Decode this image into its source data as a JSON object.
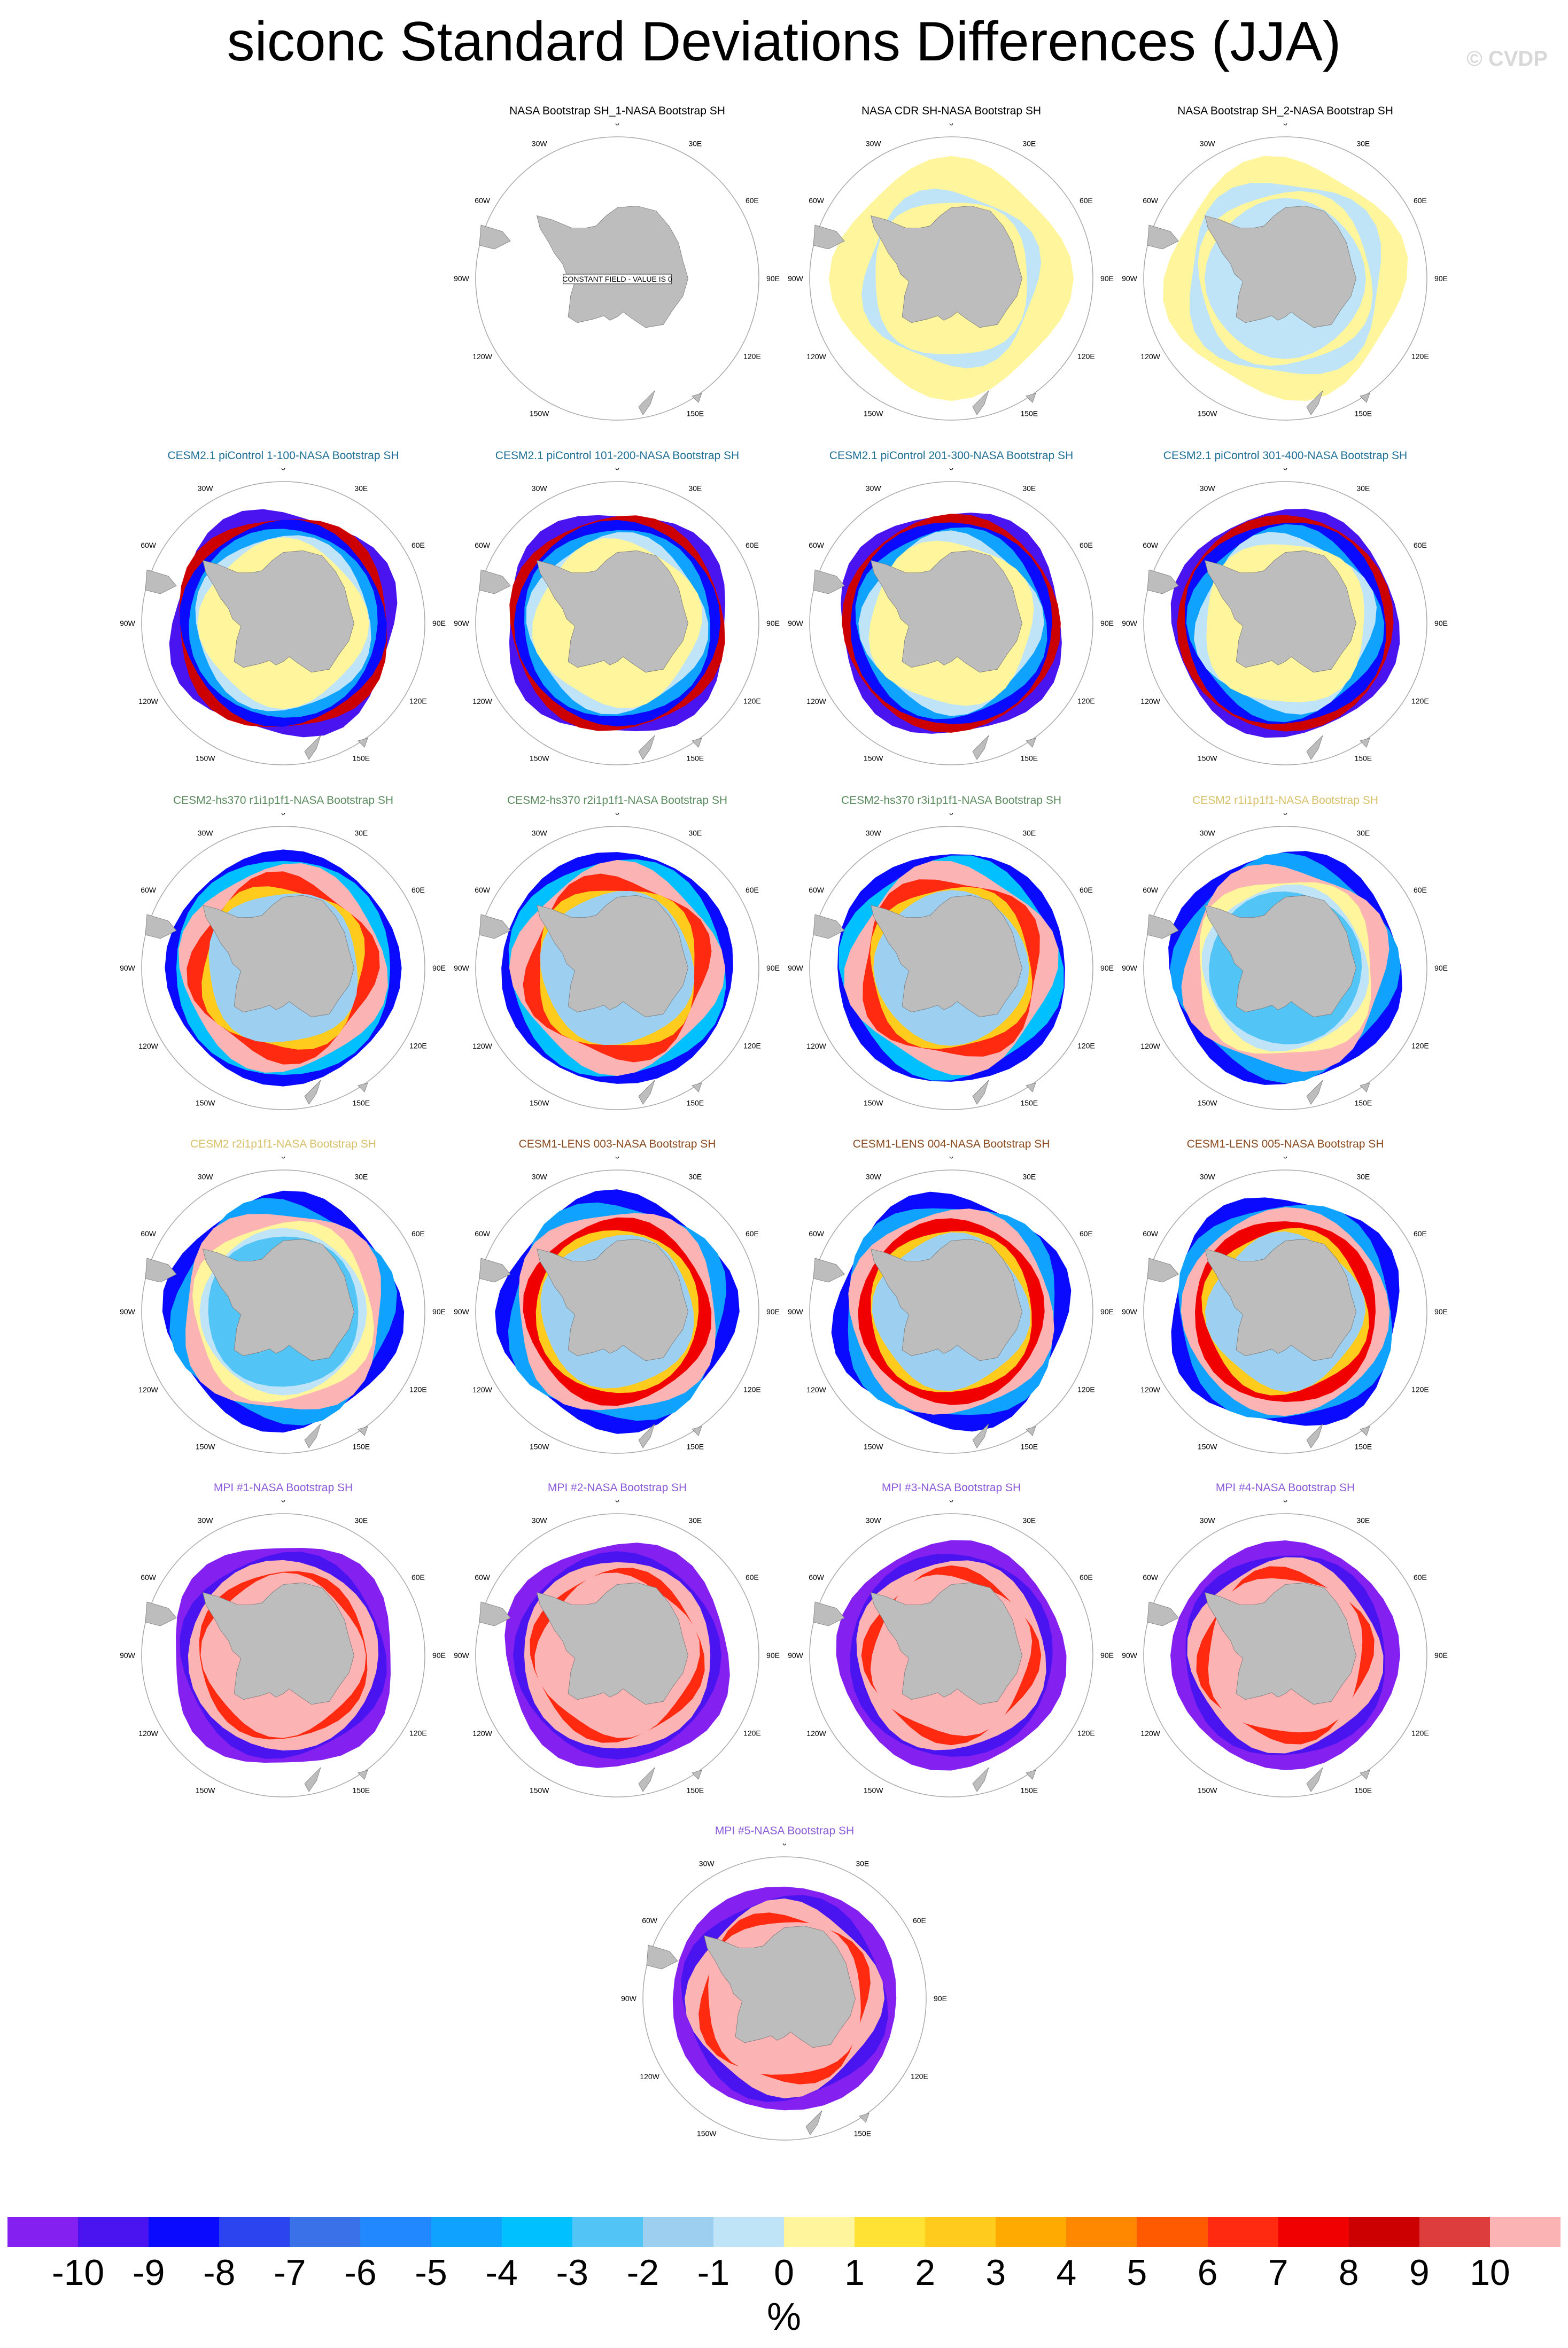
{
  "title": "siconc Standard Deviations Differences (JJA)",
  "credit": "© CVDP",
  "colors": {
    "land": "#bdbdbd",
    "ocean": "#ffffff",
    "circle": "#a8a8a8"
  },
  "longitude_labels": [
    "0",
    "30E",
    "60E",
    "90E",
    "120E",
    "150E",
    "180",
    "150W",
    "120W",
    "90W",
    "60W",
    "30W"
  ],
  "chart_data": {
    "type": "heatmap",
    "projection": "south-polar-stereographic",
    "units": "%",
    "colorbar": {
      "ticks": [
        "-10",
        "-9",
        "-8",
        "-7",
        "-6",
        "-5",
        "-4",
        "-3",
        "-2",
        "-1",
        "0",
        "1",
        "2",
        "3",
        "4",
        "5",
        "6",
        "7",
        "8",
        "9",
        "10"
      ],
      "colors": [
        "#8420f0",
        "#4a14f0",
        "#0a0aff",
        "#2c44f0",
        "#3a70e8",
        "#2288ff",
        "#10a2ff",
        "#00c0ff",
        "#52c4f5",
        "#9ccff0",
        "#bfe4f7",
        "#fff59c",
        "#ffe233",
        "#ffcc1e",
        "#ffaa00",
        "#ff8800",
        "#ff5a00",
        "#ff2a10",
        "#f00000",
        "#cc0000",
        "#dd3d3d",
        "#fbb3b3"
      ]
    },
    "panels": [
      {
        "title": "NASA Bootstrap SH_1-NASA Bootstrap SH",
        "title_color": "#000000",
        "pattern": "constant",
        "note": "CONSTANT FIELD - VALUE IS 0"
      },
      {
        "title": "NASA CDR SH-NASA Bootstrap SH",
        "title_color": "#000000",
        "pattern": "obs_cdr"
      },
      {
        "title": "NASA Bootstrap SH_2-NASA Bootstrap SH",
        "title_color": "#000000",
        "pattern": "obs_bs2"
      },
      {
        "title": "CESM2.1 piControl 1-100-NASA Bootstrap SH",
        "title_color": "#1e6e96",
        "pattern": "picontrol"
      },
      {
        "title": "CESM2.1 piControl 101-200-NASA Bootstrap SH",
        "title_color": "#1e6e96",
        "pattern": "picontrol"
      },
      {
        "title": "CESM2.1 piControl 201-300-NASA Bootstrap SH",
        "title_color": "#1e6e96",
        "pattern": "picontrol"
      },
      {
        "title": "CESM2.1 piControl 301-400-NASA Bootstrap SH",
        "title_color": "#1e6e96",
        "pattern": "picontrol"
      },
      {
        "title": "CESM2-hs370 r1i1p1f1-NASA Bootstrap SH",
        "title_color": "#5b8a5e",
        "pattern": "hs370"
      },
      {
        "title": "CESM2-hs370 r2i1p1f1-NASA Bootstrap SH",
        "title_color": "#5b8a5e",
        "pattern": "hs370"
      },
      {
        "title": "CESM2-hs370 r3i1p1f1-NASA Bootstrap SH",
        "title_color": "#5b8a5e",
        "pattern": "hs370"
      },
      {
        "title": "CESM2 r1i1p1f1-NASA Bootstrap SH",
        "title_color": "#d8c06a",
        "pattern": "cesm2"
      },
      {
        "title": "CESM2 r2i1p1f1-NASA Bootstrap SH",
        "title_color": "#d8c06a",
        "pattern": "cesm2"
      },
      {
        "title": "CESM1-LENS 003-NASA Bootstrap SH",
        "title_color": "#8b4a1e",
        "pattern": "lens"
      },
      {
        "title": "CESM1-LENS 004-NASA Bootstrap SH",
        "title_color": "#8b4a1e",
        "pattern": "lens"
      },
      {
        "title": "CESM1-LENS 005-NASA Bootstrap SH",
        "title_color": "#8b4a1e",
        "pattern": "lens"
      },
      {
        "title": "MPI #1-NASA Bootstrap SH",
        "title_color": "#8a5ad8",
        "pattern": "mpi"
      },
      {
        "title": "MPI #2-NASA Bootstrap SH",
        "title_color": "#8a5ad8",
        "pattern": "mpi"
      },
      {
        "title": "MPI #3-NASA Bootstrap SH",
        "title_color": "#8a5ad8",
        "pattern": "mpi"
      },
      {
        "title": "MPI #4-NASA Bootstrap SH",
        "title_color": "#8a5ad8",
        "pattern": "mpi"
      },
      {
        "title": "MPI #5-NASA Bootstrap SH",
        "title_color": "#8a5ad8",
        "pattern": "mpi"
      }
    ]
  }
}
